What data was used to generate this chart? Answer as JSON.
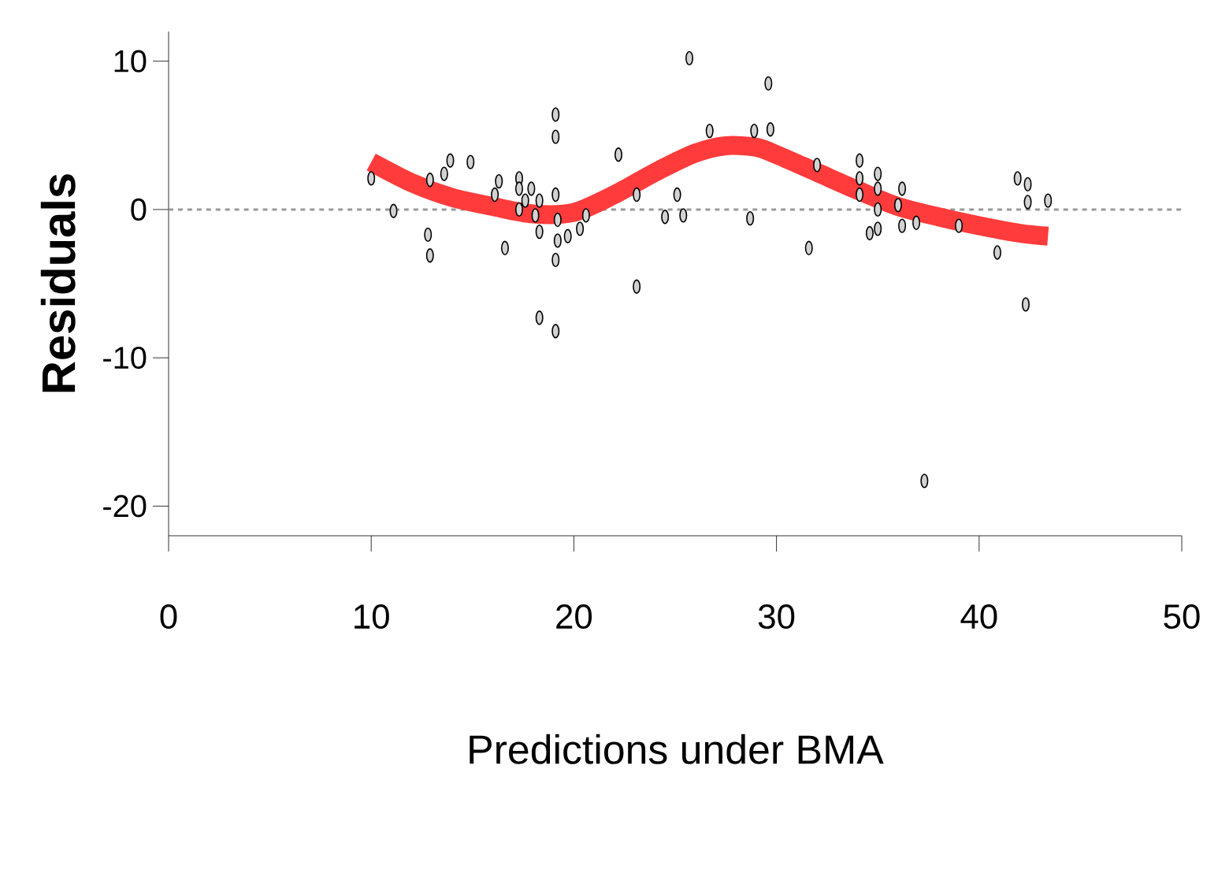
{
  "chart_data": {
    "type": "scatter",
    "xlabel": "Predictions under BMA",
    "ylabel": "Residuals",
    "xlim": [
      0,
      50
    ],
    "ylim": [
      -22,
      12
    ],
    "xticks": [
      0,
      10,
      20,
      30,
      40,
      50
    ],
    "yticks": [
      -20,
      -10,
      0,
      10
    ],
    "marker": "circle",
    "ref_lines": [
      {
        "axis": "y",
        "value": 0,
        "color": "#999999",
        "line_style": "dashed"
      }
    ],
    "series": [
      {
        "color": "#000000",
        "x": [
          10.0,
          11.1,
          12.9,
          12.8,
          12.9,
          13.6,
          13.9,
          14.9,
          16.1,
          16.3,
          16.6,
          17.3,
          17.3,
          17.3,
          17.6,
          17.9,
          18.1,
          18.3,
          18.3,
          18.3,
          19.1,
          19.1,
          19.1,
          19.2,
          19.2,
          19.1,
          19.1,
          19.7,
          20.3,
          20.6,
          22.2,
          23.1,
          23.1,
          24.5,
          25.1,
          25.4,
          25.7,
          26.7,
          28.7,
          28.9,
          29.6,
          29.7,
          31.6,
          32.0,
          34.1,
          34.1,
          34.1,
          34.6,
          35.0,
          35.0,
          35.0,
          35.0,
          36.0,
          36.2,
          36.2,
          36.9,
          37.3,
          39.0,
          40.9,
          41.9,
          42.4,
          42.4,
          42.3,
          43.4
        ],
        "values": [
          2.1,
          -0.1,
          2.0,
          -1.7,
          -3.1,
          2.4,
          3.3,
          3.2,
          1.0,
          1.9,
          -2.6,
          2.1,
          1.4,
          0.0,
          0.6,
          1.4,
          -0.4,
          0.6,
          -1.5,
          -7.3,
          6.4,
          4.9,
          1.0,
          -0.7,
          -2.1,
          -3.4,
          -8.2,
          -1.8,
          -1.3,
          -0.4,
          3.7,
          1.0,
          -5.2,
          -0.5,
          1.0,
          -0.4,
          10.2,
          5.3,
          -0.6,
          5.3,
          8.5,
          5.4,
          -2.6,
          3.0,
          3.3,
          2.1,
          1.0,
          -1.6,
          2.4,
          1.4,
          0.0,
          -1.3,
          0.3,
          1.4,
          -1.1,
          -0.9,
          -18.3,
          -1.1,
          -2.9,
          2.1,
          1.7,
          0.5,
          -6.4,
          0.6
        ]
      },
      {
        "type": "line",
        "color": "#ff3b3b",
        "marker": "none",
        "x": [
          10,
          12,
          14,
          16,
          18,
          20,
          22,
          24,
          26,
          27.5,
          29,
          30,
          32,
          34,
          36,
          38,
          40,
          42,
          43.4
        ],
        "values": [
          3.2,
          1.8,
          0.8,
          0.2,
          -0.3,
          -0.2,
          1.0,
          2.5,
          3.8,
          4.3,
          4.2,
          3.7,
          2.5,
          1.3,
          0.2,
          -0.5,
          -1.1,
          -1.6,
          -1.8
        ]
      }
    ]
  }
}
